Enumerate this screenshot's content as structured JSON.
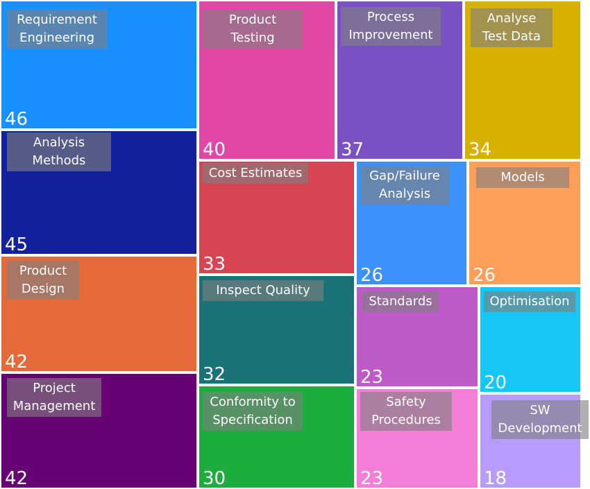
{
  "chart_data": {
    "type": "treemap",
    "items": [
      {
        "label": "Requirement\nEngineering",
        "value": 46,
        "color": "#1890ff"
      },
      {
        "label": "Analysis\nMethods",
        "value": 45,
        "color": "#13229c"
      },
      {
        "label": "Product\nDesign",
        "value": 42,
        "color": "#e56a3a"
      },
      {
        "label": "Project\nManagement",
        "value": 42,
        "color": "#670274"
      },
      {
        "label": "Product\nTesting",
        "value": 40,
        "color": "#e347a6"
      },
      {
        "label": "Process\nImprovement",
        "value": 37,
        "color": "#7a52c4"
      },
      {
        "label": "Analyse\nTest Data",
        "value": 34,
        "color": "#d7b100"
      },
      {
        "label": "Cost Estimates",
        "value": 33,
        "color": "#d84452"
      },
      {
        "label": "Inspect Quality",
        "value": 32,
        "color": "#1a7178"
      },
      {
        "label": "Conformity to\nSpecification",
        "value": 30,
        "color": "#1cad3e"
      },
      {
        "label": "Gap/Failure\nAnalysis",
        "value": 26,
        "color": "#3a92fa"
      },
      {
        "label": "Models",
        "value": 26,
        "color": "#fe9f59"
      },
      {
        "label": "Standards",
        "value": 23,
        "color": "#be5ac8"
      },
      {
        "label": "Safety\nProcedures",
        "value": 23,
        "color": "#f47ed8"
      },
      {
        "label": "Optimisation",
        "value": 20,
        "color": "#16c6f4"
      },
      {
        "label": "SW\nDevelopment",
        "value": 18,
        "color": "#b79cfe"
      }
    ]
  }
}
